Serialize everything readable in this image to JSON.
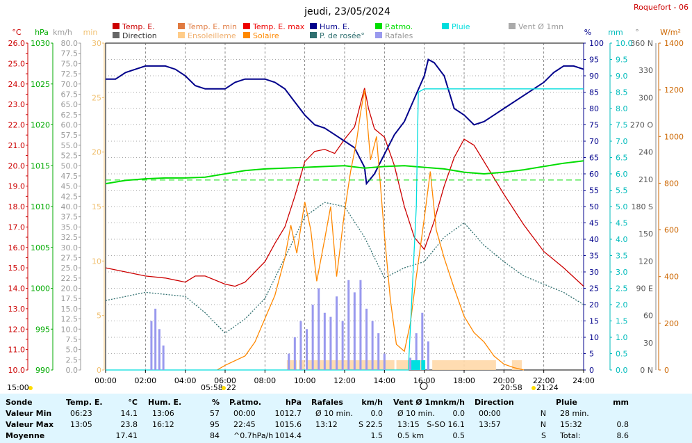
{
  "title": "jeudi, 23/05/2024",
  "station": "Roquefort - 06",
  "legend": [
    {
      "label": "Temp. E.",
      "color": "#cc0000"
    },
    {
      "label": "Temp. E. min",
      "color": "#e07a40"
    },
    {
      "label": "Temp. E. max",
      "color": "#ee0000"
    },
    {
      "label": "Hum. E.",
      "color": "#00008b"
    },
    {
      "label": "P.atmo.",
      "color": "#00dd00"
    },
    {
      "label": "Pluie",
      "color": "#00dddd"
    },
    {
      "label": "Vent Ø 1mn",
      "color": "#aaaaaa"
    },
    {
      "label": "Direction",
      "color": "#666666"
    },
    {
      "label": "Ensoleilleme",
      "color": "#ffcc88"
    },
    {
      "label": "Solaire",
      "color": "#ff8800"
    },
    {
      "label": "P. de rosée°",
      "color": "#2f6f6f"
    },
    {
      "label": "Rafales",
      "color": "#9999ee"
    }
  ],
  "axis_units": {
    "temp": "°C",
    "pressure": "hPa",
    "wind": "km/h",
    "sun": "min",
    "humidity": "%",
    "rain": "mm",
    "direction": "°",
    "solar": "W/m²"
  },
  "axis_colors": {
    "temp": "#cc0000",
    "pressure": "#00aa00",
    "wind": "#999999",
    "sun": "#f0c070",
    "humidity": "#00008b",
    "rain": "#00bbbb",
    "direction": "#888888",
    "solar": "#cc6600"
  },
  "time_labels": [
    "00:00",
    "02:00",
    "04:00",
    "06:00",
    "08:00",
    "10:00",
    "12:00",
    "14:00",
    "16:00",
    "18:00",
    "20:00",
    "22:00",
    "24:00"
  ],
  "sun_events": {
    "left": "15:00",
    "sunrise": "05:58",
    "sunrise_tail": "22",
    "sunset": "20:58",
    "sunset_tail": "21:24"
  },
  "chart_data": {
    "type": "line",
    "title": "jeudi, 23/05/2024",
    "x_range_hours": [
      0,
      24
    ],
    "axes": {
      "temp": {
        "unit": "°C",
        "range": [
          10,
          26
        ],
        "step": 0.5
      },
      "pressure": {
        "unit": "hPa",
        "range": [
          990,
          1030
        ],
        "step": 5
      },
      "wind": {
        "unit": "km/h",
        "range": [
          0,
          80
        ],
        "step": 2.5
      },
      "sun": {
        "unit": "min",
        "range": [
          0,
          30
        ],
        "step": 5
      },
      "humidity": {
        "unit": "%",
        "range": [
          0,
          100
        ],
        "step": 5
      },
      "rain": {
        "unit": "mm",
        "range": [
          0,
          10
        ],
        "step": 0.5
      },
      "direction": {
        "unit": "°",
        "ticks": [
          "0 N",
          "30",
          "60",
          "90 E",
          "120",
          "150",
          "180 S",
          "210",
          "240",
          "270 O",
          "300",
          "330",
          "360 N"
        ]
      },
      "solar": {
        "unit": "W/m²",
        "range": [
          0,
          1400
        ],
        "step": 200
      }
    },
    "series": [
      {
        "name": "Temp. E.",
        "axis": "temp",
        "color": "#cc0000",
        "x": [
          0,
          1,
          2,
          3,
          4,
          4.5,
          5,
          6,
          6.5,
          7,
          8,
          8.5,
          9,
          9.5,
          10,
          10.5,
          11,
          11.5,
          12,
          12.5,
          13,
          13.2,
          13.5,
          14,
          14.5,
          15,
          15.5,
          16,
          16.5,
          17,
          17.5,
          18,
          18.5,
          19,
          20,
          21,
          22,
          23,
          24
        ],
        "y": [
          15.0,
          14.8,
          14.6,
          14.5,
          14.3,
          14.6,
          14.6,
          14.2,
          14.1,
          14.3,
          15.3,
          16.2,
          17.0,
          18.5,
          20.2,
          20.7,
          20.8,
          20.6,
          21.3,
          21.9,
          23.8,
          22.8,
          21.8,
          21.4,
          20.0,
          18.0,
          16.5,
          15.9,
          17.3,
          19.0,
          20.4,
          21.3,
          21.0,
          20.2,
          18.6,
          17.1,
          15.8,
          15.0,
          14.1
        ]
      },
      {
        "name": "Hum. E.",
        "axis": "humidity",
        "color": "#00008b",
        "x": [
          0,
          0.5,
          1,
          1.5,
          2,
          3,
          3.5,
          4,
          4.5,
          5,
          5.5,
          6,
          6.5,
          7,
          8,
          8.5,
          9,
          9.5,
          10,
          10.5,
          11,
          11.5,
          12,
          12.5,
          13,
          13.1,
          13.5,
          14,
          14.5,
          15,
          15.5,
          16,
          16.2,
          16.5,
          17,
          17.5,
          18,
          18.5,
          19,
          19.5,
          20,
          21,
          22,
          22.5,
          23,
          23.5,
          24
        ],
        "y": [
          89,
          89,
          91,
          92,
          93,
          93,
          92,
          90,
          87,
          86,
          86,
          86,
          88,
          89,
          89,
          88,
          86,
          82,
          78,
          75,
          74,
          72,
          70,
          68,
          62,
          57,
          60,
          66,
          72,
          76,
          83,
          90,
          95,
          94,
          90,
          80,
          78,
          75,
          76,
          78,
          80,
          84,
          88,
          91,
          93,
          93,
          92
        ]
      },
      {
        "name": "P.atmo.",
        "axis": "pressure",
        "color": "#00dd00",
        "x": [
          0,
          1,
          2,
          3,
          4,
          5,
          6,
          7,
          8,
          9,
          10,
          11,
          12,
          13,
          14,
          15,
          16,
          17,
          18,
          19,
          20,
          21,
          22,
          23,
          24
        ],
        "y": [
          1012.8,
          1013.2,
          1013.4,
          1013.5,
          1013.5,
          1013.6,
          1014.0,
          1014.4,
          1014.6,
          1014.7,
          1014.8,
          1014.9,
          1015.0,
          1014.7,
          1014.9,
          1015.0,
          1014.8,
          1014.6,
          1014.2,
          1014.0,
          1014.2,
          1014.5,
          1014.9,
          1015.3,
          1015.6
        ]
      },
      {
        "name": "P. de rosée°",
        "axis": "temp",
        "color": "#2f6f6f",
        "x": [
          0,
          1,
          2,
          3,
          4,
          5,
          6,
          7,
          8,
          9,
          10,
          11,
          12,
          13,
          14,
          15,
          16,
          17,
          18,
          19,
          20,
          21,
          22,
          23,
          24
        ],
        "y": [
          13.4,
          13.6,
          13.8,
          13.7,
          13.6,
          12.8,
          11.8,
          12.5,
          13.5,
          15.5,
          17.5,
          18.2,
          18.0,
          16.5,
          14.5,
          15.0,
          15.3,
          16.5,
          17.2,
          16.1,
          15.3,
          14.6,
          14.2,
          13.8,
          13.2
        ]
      },
      {
        "name": "Solaire",
        "axis": "solar",
        "color": "#ff8800",
        "x": [
          5.6,
          6,
          7,
          7.5,
          8,
          8.5,
          9,
          9.3,
          9.6,
          10,
          10.3,
          10.6,
          11,
          11.3,
          11.6,
          12,
          12.3,
          12.6,
          12.8,
          13,
          13.3,
          13.6,
          14,
          14.3,
          14.6,
          15,
          15.3,
          15.6,
          16,
          16.3,
          16.6,
          17,
          17.5,
          18,
          18.5,
          19,
          19.5,
          20,
          20.5,
          21
        ],
        "y": [
          0,
          20,
          60,
          120,
          220,
          320,
          480,
          620,
          500,
          720,
          600,
          380,
          560,
          700,
          400,
          680,
          850,
          980,
          1100,
          1200,
          900,
          1000,
          580,
          300,
          110,
          80,
          200,
          400,
          650,
          850,
          600,
          480,
          350,
          230,
          160,
          120,
          60,
          25,
          10,
          0
        ]
      },
      {
        "name": "Pluie",
        "axis": "rain",
        "color": "#00dddd",
        "x": [
          0,
          15.2,
          15.6,
          15.7,
          16,
          24
        ],
        "y": [
          0,
          0,
          5.0,
          8.5,
          8.6,
          8.6
        ]
      },
      {
        "name": "Rafales",
        "axis": "wind",
        "color": "#9999ee",
        "x": [
          2.3,
          2.5,
          2.7,
          2.9,
          9.2,
          9.5,
          9.8,
          10.1,
          10.4,
          10.7,
          11.0,
          11.3,
          11.6,
          11.9,
          12.2,
          12.5,
          12.8,
          13.1,
          13.4,
          13.7,
          14.0,
          15.3,
          15.6,
          15.9,
          16.2
        ],
        "y": [
          12,
          15,
          10,
          6,
          4,
          8,
          12,
          10,
          16,
          20,
          14,
          13,
          18,
          12,
          22,
          19,
          22,
          15,
          12,
          9,
          4,
          3,
          9,
          14,
          7
        ]
      }
    ]
  },
  "stats_table": {
    "headers": [
      {
        "l": "Sonde",
        "u": ""
      },
      {
        "l": "Temp. E.",
        "u": "°C"
      },
      {
        "l": "Hum. E.",
        "u": "%"
      },
      {
        "l": "P.atmo.",
        "u": "hPa"
      },
      {
        "l": "Rafales",
        "u": "km/h"
      },
      {
        "l": "Vent Ø 1mn",
        "u": "km/h"
      },
      {
        "l": "Direction",
        "u": ""
      },
      {
        "l": "Pluie",
        "u": "mm"
      }
    ],
    "rows": [
      {
        "label": "Valeur Min",
        "cells": [
          {
            "a": "06:23",
            "b": "14.1"
          },
          {
            "a": "13:06",
            "b": "57"
          },
          {
            "a": "00:00",
            "b": "1012.7"
          },
          {
            "a": "Ø 10 min.",
            "b": "0.0"
          },
          {
            "a": "Ø 10 min.",
            "b": "0.0"
          },
          {
            "a": "00:00",
            "b": "N"
          },
          {
            "a": "28 min.",
            "b": ""
          }
        ]
      },
      {
        "label": "Valeur Max",
        "cells": [
          {
            "a": "13:05",
            "b": "23.8"
          },
          {
            "a": "16:12",
            "b": "95"
          },
          {
            "a": "22:45",
            "b": "1015.6"
          },
          {
            "a": "13:12",
            "b": "S 22.5"
          },
          {
            "a": "13:15",
            "b": "S-SO 16.1"
          },
          {
            "a": "13:57",
            "b": "N"
          },
          {
            "a": "15:32",
            "b": "0.8"
          }
        ]
      },
      {
        "label": "Moyenne",
        "cells": [
          {
            "a": "",
            "b": "17.41"
          },
          {
            "a": "",
            "b": "84"
          },
          {
            "a": "^0.7hPa/h",
            "b": "1014.4"
          },
          {
            "a": "",
            "b": "1.5"
          },
          {
            "a": "0.5 km",
            "b": "0.5"
          },
          {
            "a": "",
            "b": "S"
          },
          {
            "a": "Total:",
            "b": "8.6"
          }
        ]
      }
    ]
  }
}
